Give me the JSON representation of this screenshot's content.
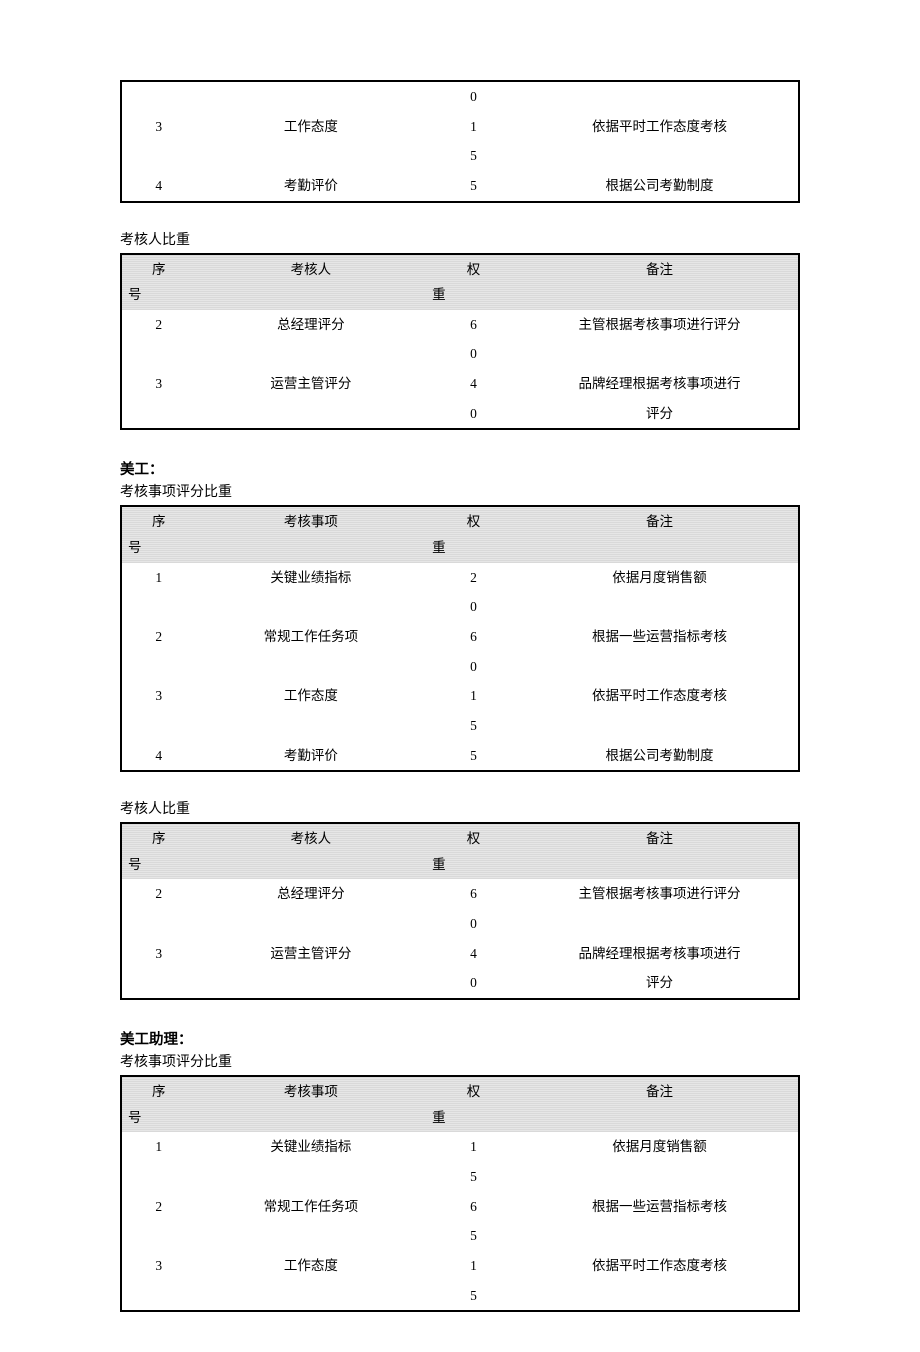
{
  "colors": {
    "background": "#ffffff",
    "text": "#000000",
    "table_border": "#000000",
    "header_fill_1": "#d9d9d9",
    "header_fill_2": "#e6e6e6"
  },
  "typography": {
    "body_family": "SimSun",
    "body_size_pt": 10.5,
    "title_size_pt": 11,
    "title_weight": "bold"
  },
  "columns_item": {
    "seq": "序号",
    "item": "考核事项",
    "weight": "权重",
    "note": "备注"
  },
  "columns_person": {
    "seq": "序号",
    "item": "考核人",
    "weight": "权重",
    "note": "备注"
  },
  "top_fragment": {
    "rows": [
      {
        "seq": "",
        "item": "",
        "weight": "0",
        "note": ""
      },
      {
        "seq": "3",
        "item": "工作态度",
        "weight": "1",
        "note": "依据平时工作态度考核"
      },
      {
        "seq": "",
        "item": "",
        "weight": "5",
        "note": ""
      },
      {
        "seq": "4",
        "item": "考勤评价",
        "weight": "5",
        "note": "根据公司考勤制度"
      }
    ]
  },
  "section1_person": {
    "caption": "考核人比重",
    "rows": [
      {
        "seq": "2",
        "item": "总经理评分",
        "weight": "6",
        "note": "主管根据考核事项进行评分"
      },
      {
        "seq": "",
        "item": "",
        "weight": "0",
        "note": ""
      },
      {
        "seq": "3",
        "item": "运营主管评分",
        "weight": "4",
        "note": "品牌经理根据考核事项进行"
      },
      {
        "seq": "",
        "item": "",
        "weight": "0",
        "note": "评分"
      }
    ]
  },
  "section2": {
    "title": "美工：",
    "item_caption": "考核事项评分比重",
    "item_rows": [
      {
        "seq": "1",
        "item": "关键业绩指标",
        "weight": "2",
        "note": "依据月度销售额"
      },
      {
        "seq": "",
        "item": "",
        "weight": "0",
        "note": ""
      },
      {
        "seq": "2",
        "item": "常规工作任务项",
        "weight": "6",
        "note": "根据一些运营指标考核"
      },
      {
        "seq": "",
        "item": "",
        "weight": "0",
        "note": ""
      },
      {
        "seq": "3",
        "item": "工作态度",
        "weight": "1",
        "note": "依据平时工作态度考核"
      },
      {
        "seq": "",
        "item": "",
        "weight": "5",
        "note": ""
      },
      {
        "seq": "4",
        "item": "考勤评价",
        "weight": "5",
        "note": "根据公司考勤制度"
      }
    ],
    "person_caption": "考核人比重",
    "person_rows": [
      {
        "seq": "2",
        "item": "总经理评分",
        "weight": "6",
        "note": "主管根据考核事项进行评分"
      },
      {
        "seq": "",
        "item": "",
        "weight": "0",
        "note": ""
      },
      {
        "seq": "3",
        "item": "运营主管评分",
        "weight": "4",
        "note": "品牌经理根据考核事项进行"
      },
      {
        "seq": "",
        "item": "",
        "weight": "0",
        "note": "评分"
      }
    ]
  },
  "section3": {
    "title": "美工助理：",
    "item_caption": "考核事项评分比重",
    "item_rows": [
      {
        "seq": "1",
        "item": "关键业绩指标",
        "weight": "1",
        "note": "依据月度销售额"
      },
      {
        "seq": "",
        "item": "",
        "weight": "5",
        "note": ""
      },
      {
        "seq": "2",
        "item": "常规工作任务项",
        "weight": "6",
        "note": "根据一些运营指标考核"
      },
      {
        "seq": "",
        "item": "",
        "weight": "5",
        "note": ""
      },
      {
        "seq": "3",
        "item": "工作态度",
        "weight": "1",
        "note": "依据平时工作态度考核"
      },
      {
        "seq": "",
        "item": "",
        "weight": "5",
        "note": ""
      }
    ]
  }
}
